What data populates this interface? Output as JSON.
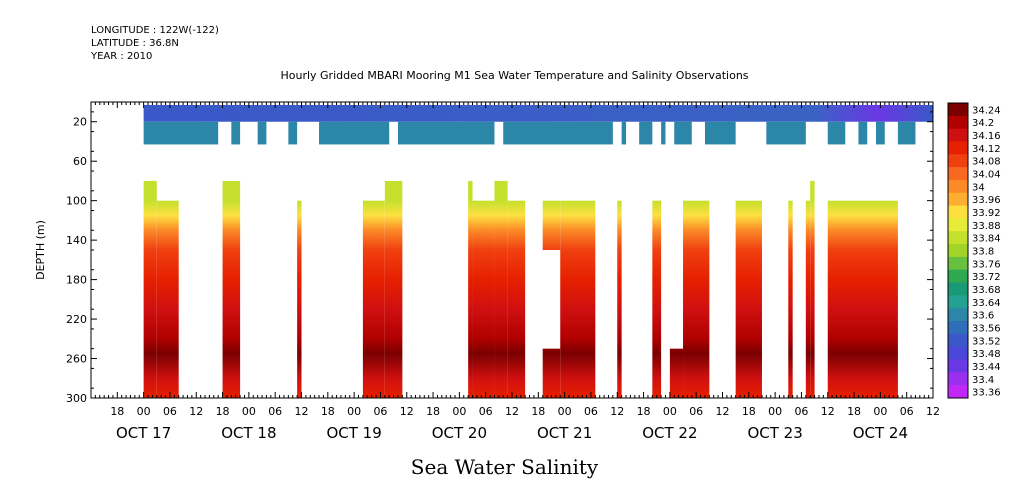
{
  "header": {
    "longitude": "LONGITUDE : 122W(-122)",
    "latitude": "LATITUDE : 36.8N",
    "year": "YEAR : 2010"
  },
  "chart_data": {
    "type": "heatmap",
    "title": "Hourly Gridded MBARI Mooring M1 Sea Water Temperature and Salinity Observations",
    "bottom_title": "Sea Water Salinity",
    "ylabel": "DEPTH (m)",
    "y_reversed": true,
    "ylim": [
      300,
      0
    ],
    "y_ticks": [
      20,
      60,
      100,
      140,
      180,
      220,
      260,
      300
    ],
    "x_start": "2010-10-16 12:00",
    "x_end": "2010-10-24 12:00",
    "x_tick_labels": [
      "18",
      "00",
      "06",
      "12",
      "18",
      "00",
      "06",
      "12",
      "18",
      "00",
      "06",
      "12",
      "18",
      "00",
      "06",
      "12",
      "18",
      "00",
      "06",
      "12",
      "18",
      "00",
      "06",
      "12",
      "18",
      "00",
      "06",
      "12",
      "18",
      "00",
      "06",
      "12"
    ],
    "x_day_labels": [
      "OCT 17",
      "OCT 18",
      "OCT 19",
      "OCT 20",
      "OCT 21",
      "OCT 22",
      "OCT 23",
      "OCT 24"
    ],
    "colorbar_levels": [
      34.24,
      34.2,
      34.16,
      34.12,
      34.08,
      34.04,
      34,
      33.96,
      33.92,
      33.88,
      33.84,
      33.8,
      33.76,
      33.72,
      33.68,
      33.64,
      33.6,
      33.56,
      33.52,
      33.48,
      33.44,
      33.4,
      33.36
    ],
    "color_stops": [
      "#7a0000",
      "#b00000",
      "#d01010",
      "#e62000",
      "#f04010",
      "#f86820",
      "#fc8a28",
      "#fdad30",
      "#fde040",
      "#e6ec38",
      "#c4e02c",
      "#a2d428",
      "#68c040",
      "#2fa852",
      "#1a9a74",
      "#23a292",
      "#2c86a8",
      "#2f6eb8",
      "#3a58c8",
      "#4a48d8",
      "#6a38e4",
      "#9a30ee",
      "#c028f8"
    ],
    "surface_layer": {
      "depth_range": [
        3,
        20
      ],
      "value": 33.5,
      "note_color_high_end": "33.4"
    },
    "second_layer": {
      "depth_range": [
        20,
        43
      ],
      "value": 33.6,
      "data_segments": [
        [
          "2010-10-17 00:00",
          "2010-10-17 17:00"
        ],
        [
          "2010-10-17 20:00",
          "2010-10-17 22:00"
        ],
        [
          "2010-10-18 02:00",
          "2010-10-18 04:00"
        ],
        [
          "2010-10-18 09:00",
          "2010-10-18 11:00"
        ],
        [
          "2010-10-18 16:00",
          "2010-10-19 08:00"
        ],
        [
          "2010-10-19 10:00",
          "2010-10-20 08:00"
        ],
        [
          "2010-10-20 10:00",
          "2010-10-21 11:00"
        ],
        [
          "2010-10-21 13:00",
          "2010-10-21 14:00"
        ],
        [
          "2010-10-21 17:00",
          "2010-10-21 20:00"
        ],
        [
          "2010-10-21 22:00",
          "2010-10-21 23:00"
        ],
        [
          "2010-10-22 01:00",
          "2010-10-22 05:00"
        ],
        [
          "2010-10-22 08:00",
          "2010-10-22 15:00"
        ],
        [
          "2010-10-22 22:00",
          "2010-10-23 07:00"
        ],
        [
          "2010-10-23 12:00",
          "2010-10-23 16:00"
        ],
        [
          "2010-10-23 19:00",
          "2010-10-23 21:00"
        ],
        [
          "2010-10-23 23:00",
          "2010-10-24 01:00"
        ],
        [
          "2010-10-24 04:00",
          "2010-10-24 08:00"
        ],
        [
          "2010-10-24 15:00",
          "2010-10-25 12:00"
        ]
      ]
    },
    "deep_blocks": [
      {
        "t0": "2010-10-17 00:00",
        "t1": "2010-10-17 03:00",
        "top": 80,
        "bottom": 300
      },
      {
        "t0": "2010-10-17 03:00",
        "t1": "2010-10-17 08:00",
        "top": 100,
        "bottom": 300
      },
      {
        "t0": "2010-10-17 18:00",
        "t1": "2010-10-17 22:00",
        "top": 80,
        "bottom": 300
      },
      {
        "t0": "2010-10-18 11:00",
        "t1": "2010-10-18 12:00",
        "top": 100,
        "bottom": 300
      },
      {
        "t0": "2010-10-19 02:00",
        "t1": "2010-10-19 07:00",
        "top": 100,
        "bottom": 300
      },
      {
        "t0": "2010-10-19 07:00",
        "t1": "2010-10-19 11:00",
        "top": 80,
        "bottom": 300
      },
      {
        "t0": "2010-10-20 02:00",
        "t1": "2010-10-20 03:00",
        "top": 80,
        "bottom": 300
      },
      {
        "t0": "2010-10-20 03:00",
        "t1": "2010-10-20 08:00",
        "top": 100,
        "bottom": 300
      },
      {
        "t0": "2010-10-20 08:00",
        "t1": "2010-10-20 11:00",
        "top": 80,
        "bottom": 300
      },
      {
        "t0": "2010-10-20 11:00",
        "t1": "2010-10-20 15:00",
        "top": 100,
        "bottom": 300
      },
      {
        "t0": "2010-10-20 19:00",
        "t1": "2010-10-20 23:00",
        "top": 100,
        "bottom": 150
      },
      {
        "t0": "2010-10-20 19:00",
        "t1": "2010-10-20 23:00",
        "top": 250,
        "bottom": 300
      },
      {
        "t0": "2010-10-20 23:00",
        "t1": "2010-10-21 07:00",
        "top": 100,
        "bottom": 300
      },
      {
        "t0": "2010-10-21 12:00",
        "t1": "2010-10-21 13:00",
        "top": 100,
        "bottom": 300
      },
      {
        "t0": "2010-10-21 20:00",
        "t1": "2010-10-21 22:00",
        "top": 100,
        "bottom": 300
      },
      {
        "t0": "2010-10-22 00:00",
        "t1": "2010-10-22 03:00",
        "top": 250,
        "bottom": 300
      },
      {
        "t0": "2010-10-22 03:00",
        "t1": "2010-10-22 09:00",
        "top": 100,
        "bottom": 300
      },
      {
        "t0": "2010-10-22 15:00",
        "t1": "2010-10-22 21:00",
        "top": 100,
        "bottom": 300
      },
      {
        "t0": "2010-10-23 03:00",
        "t1": "2010-10-23 04:00",
        "top": 100,
        "bottom": 300
      },
      {
        "t0": "2010-10-23 07:00",
        "t1": "2010-10-23 08:00",
        "top": 100,
        "bottom": 300
      },
      {
        "t0": "2010-10-23 08:00",
        "t1": "2010-10-23 09:00",
        "top": 80,
        "bottom": 300
      },
      {
        "t0": "2010-10-23 12:00",
        "t1": "2010-10-24 04:00",
        "top": 100,
        "bottom": 300
      },
      {
        "t0": "2010-10-24 14:00",
        "t1": "2010-10-24 20:00",
        "top": 100,
        "bottom": 300
      }
    ],
    "vertical_profile": [
      {
        "depth": 80,
        "value": 33.82
      },
      {
        "depth": 100,
        "value": 33.82
      },
      {
        "depth": 115,
        "value": 33.92
      },
      {
        "depth": 130,
        "value": 34.0
      },
      {
        "depth": 150,
        "value": 34.06
      },
      {
        "depth": 180,
        "value": 34.1
      },
      {
        "depth": 210,
        "value": 34.14
      },
      {
        "depth": 240,
        "value": 34.2
      },
      {
        "depth": 255,
        "value": 34.24
      },
      {
        "depth": 280,
        "value": 34.16
      },
      {
        "depth": 300,
        "value": 34.13
      }
    ]
  }
}
